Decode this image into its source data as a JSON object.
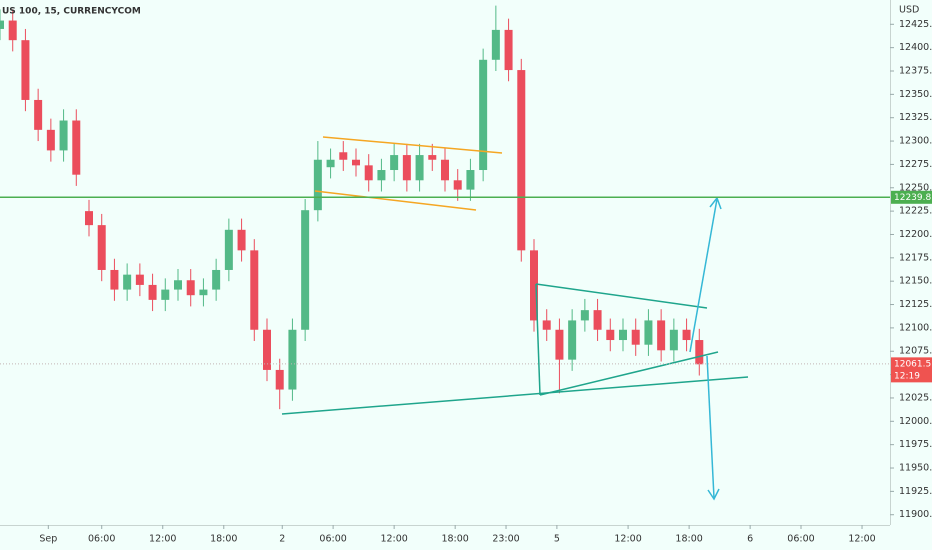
{
  "chart_data": {
    "type": "candlestick",
    "title": "US 100, 15, CURRENCYCOM",
    "currency": "USD",
    "up_color": "#53b987",
    "down_color": "#eb4d5c",
    "x": [
      0,
      5,
      10,
      15,
      20,
      25,
      30,
      35,
      40,
      45,
      50,
      55,
      60,
      65,
      70,
      75,
      80,
      85,
      90,
      95,
      100,
      105,
      110,
      115,
      120,
      125,
      130,
      135,
      140,
      145,
      150,
      155,
      160,
      165,
      170,
      175,
      180,
      185,
      190,
      195,
      200,
      205,
      210,
      215,
      220,
      225,
      230,
      235,
      240,
      245,
      250,
      255,
      260,
      265,
      270,
      275
    ],
    "open": [
      12420,
      12429,
      12408,
      12344,
      12312,
      12290,
      12322,
      12225,
      12210,
      12162,
      12141,
      12157,
      12146,
      12130,
      12141,
      12151,
      12135,
      12141,
      12162,
      12205,
      12183,
      12098,
      12055,
      12034,
      12098,
      12226,
      12272,
      12288,
      12280,
      12274,
      12258,
      12269,
      12285,
      12258,
      12285,
      12280,
      12258,
      12248,
      12269,
      12387,
      12419,
      12376,
      12183,
      12108,
      12098,
      12066,
      12108,
      12119,
      12098,
      12087,
      12098,
      12082,
      12108,
      12076,
      12098,
      12087
    ],
    "high": [
      12441,
      12441,
      12420,
      12356,
      12324,
      12334,
      12334,
      12237,
      12222,
      12174,
      12169,
      12169,
      12158,
      12153,
      12163,
      12163,
      12153,
      12174,
      12217,
      12217,
      12195,
      12110,
      12067,
      12110,
      12238,
      12300,
      12292,
      12300,
      12292,
      12286,
      12281,
      12297,
      12297,
      12297,
      12297,
      12292,
      12270,
      12281,
      12399,
      12445,
      12431,
      12388,
      12195,
      12120,
      12110,
      12120,
      12131,
      12131,
      12110,
      12110,
      12110,
      12120,
      12120,
      12110,
      12110,
      12099
    ],
    "low": [
      12408,
      12396,
      12332,
      12300,
      12278,
      12278,
      12252,
      12198,
      12150,
      12129,
      12129,
      12134,
      12118,
      12118,
      12129,
      12123,
      12123,
      12129,
      12150,
      12171,
      12086,
      12043,
      12013,
      12022,
      12086,
      12214,
      12260,
      12268,
      12262,
      12246,
      12246,
      12257,
      12246,
      12246,
      12268,
      12246,
      12236,
      12236,
      12257,
      12375,
      12364,
      12171,
      12096,
      12086,
      12030,
      12054,
      12096,
      12086,
      12075,
      12075,
      12070,
      12070,
      12064,
      12064,
      12075,
      12049
    ],
    "close": [
      12429,
      12408,
      12344,
      12312,
      12290,
      12322,
      12264,
      12210,
      12162,
      12141,
      12157,
      12146,
      12130,
      12141,
      12151,
      12135,
      12141,
      12162,
      12205,
      12183,
      12098,
      12055,
      12034,
      12098,
      12226,
      12280,
      12280,
      12280,
      12274,
      12258,
      12269,
      12285,
      12258,
      12285,
      12280,
      12258,
      12248,
      12269,
      12387,
      12419,
      12376,
      12183,
      12108,
      12098,
      12066,
      12108,
      12119,
      12098,
      12087,
      12098,
      12082,
      12108,
      12076,
      12098,
      12087,
      12061
    ],
    "xlim": [
      0,
      350
    ],
    "xticks": [
      {
        "value": 19,
        "label": "Sep"
      },
      {
        "value": 40,
        "label": "06:00"
      },
      {
        "value": 64,
        "label": "12:00"
      },
      {
        "value": 88,
        "label": "18:00"
      },
      {
        "value": 111,
        "label": "2"
      },
      {
        "value": 131,
        "label": "06:00"
      },
      {
        "value": 155,
        "label": "12:00"
      },
      {
        "value": 179,
        "label": "18:00"
      },
      {
        "value": 199,
        "label": "23:00"
      },
      {
        "value": 219,
        "label": "5"
      },
      {
        "value": 247,
        "label": "12:00"
      },
      {
        "value": 271,
        "label": "18:00"
      },
      {
        "value": 295,
        "label": "6"
      },
      {
        "value": 315,
        "label": "06:00"
      },
      {
        "value": 339,
        "label": "12:00"
      }
    ],
    "ylim": [
      11889,
      12451
    ],
    "yticks": [
      {
        "value": 12425,
        "label": "12425.0"
      },
      {
        "value": 12400,
        "label": "12400.0"
      },
      {
        "value": 12375,
        "label": "12375.0"
      },
      {
        "value": 12350,
        "label": "12350.0"
      },
      {
        "value": 12325,
        "label": "12325.0"
      },
      {
        "value": 12300,
        "label": "12300.0"
      },
      {
        "value": 12275,
        "label": "12275.0"
      },
      {
        "value": 12250,
        "label": "12250.0"
      },
      {
        "value": 12225,
        "label": "12225.0"
      },
      {
        "value": 12200,
        "label": "12200.0"
      },
      {
        "value": 12175,
        "label": "12175.0"
      },
      {
        "value": 12150,
        "label": "12150.0"
      },
      {
        "value": 12125,
        "label": "12125.0"
      },
      {
        "value": 12100,
        "label": "12100.0"
      },
      {
        "value": 12075,
        "label": "12075.0"
      },
      {
        "value": 12050,
        "label": "12050.0"
      },
      {
        "value": 12025,
        "label": "12025.0"
      },
      {
        "value": 12000,
        "label": "12000.0"
      },
      {
        "value": 11975,
        "label": "11975.0"
      },
      {
        "value": 11950,
        "label": "11950.0"
      },
      {
        "value": 11925,
        "label": "11925.0"
      },
      {
        "value": 11900,
        "label": "11900.0"
      }
    ],
    "level": {
      "value": 12239.8,
      "color": "#4caf50"
    },
    "last_price": {
      "value": 12061.5,
      "countdown": "12:19",
      "color": "#ef5350"
    }
  }
}
